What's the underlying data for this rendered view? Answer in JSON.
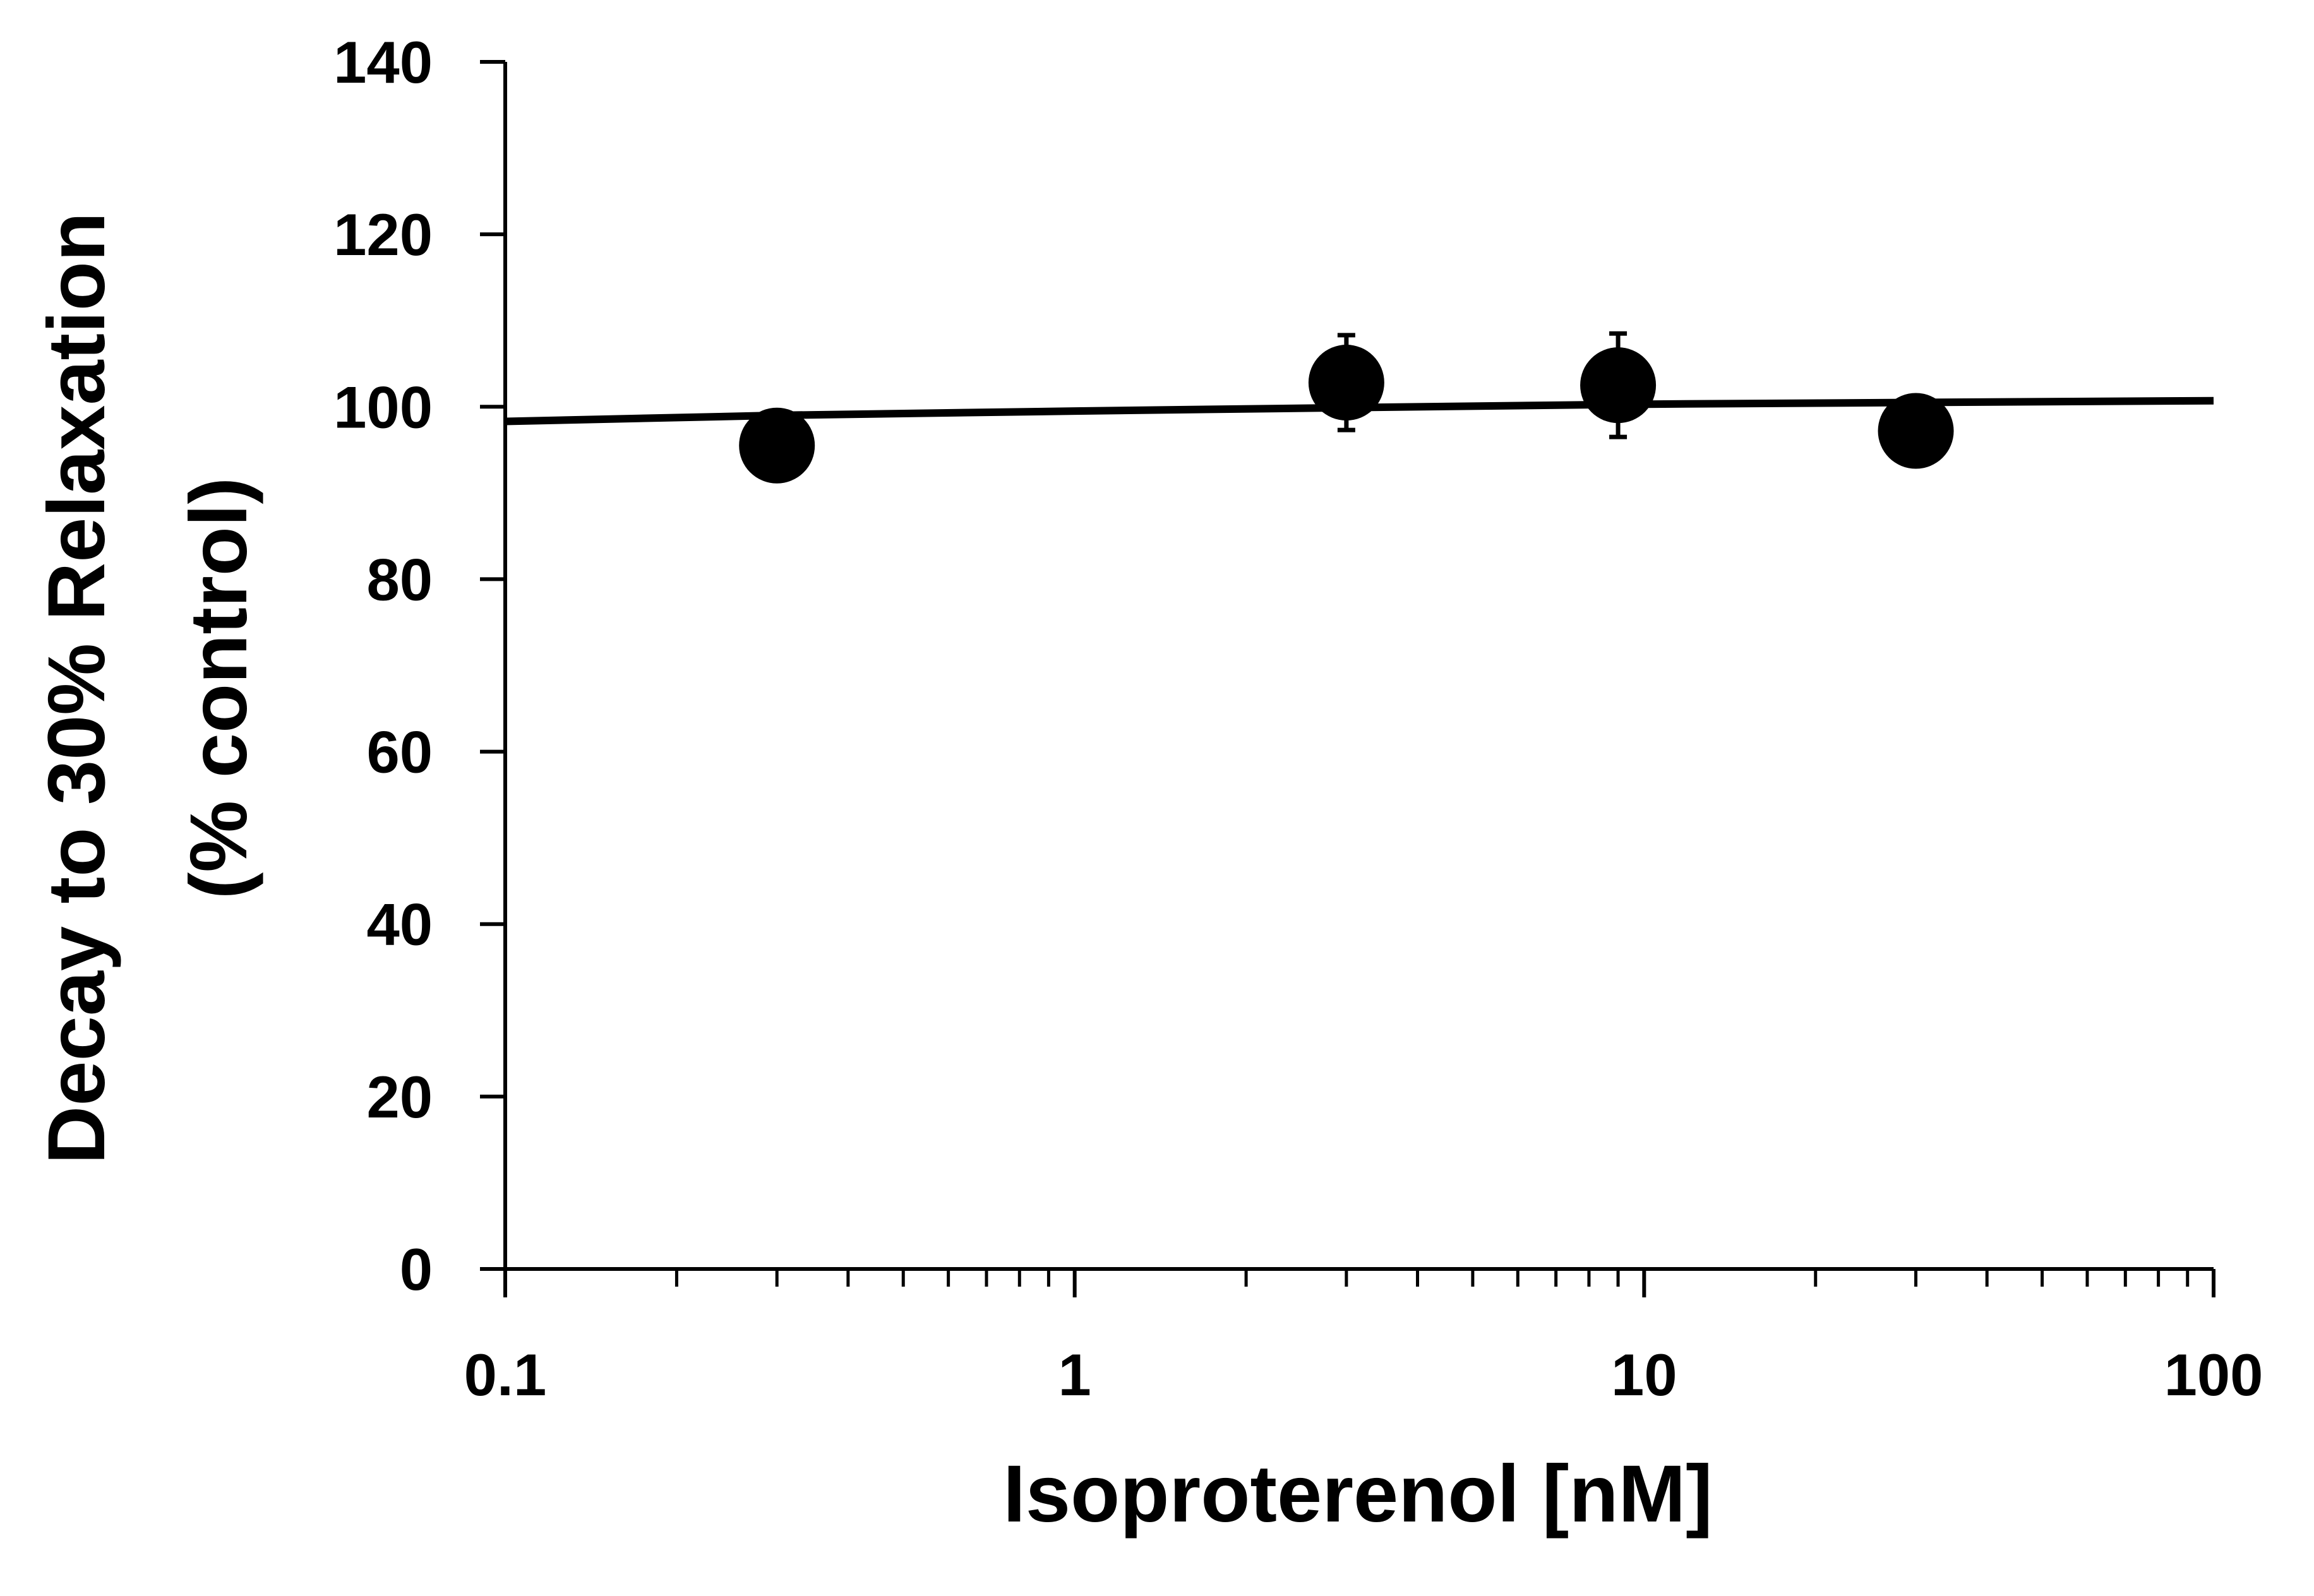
{
  "chart_data": {
    "type": "scatter",
    "xlabel": "Isoproterenol [nM]",
    "ylabel_lines": [
      "Decay to 30% Relaxation",
      "(% control)"
    ],
    "x_scale": "log",
    "xlim": [
      0.1,
      100
    ],
    "ylim": [
      0,
      140
    ],
    "x_tick_labels": [
      "0.1",
      "1",
      "10",
      "100"
    ],
    "x_ticks": [
      0.1,
      1,
      10,
      100
    ],
    "y_ticks": [
      0,
      20,
      40,
      60,
      80,
      100,
      120,
      140
    ],
    "y_tick_labels": [
      "0",
      "20",
      "40",
      "60",
      "80",
      "100",
      "120",
      "140"
    ],
    "grid": false,
    "legend": "none",
    "points": [
      {
        "x": 0.3,
        "y": 95.5,
        "err": 0
      },
      {
        "x": 3,
        "y": 102.8,
        "err": 5.5
      },
      {
        "x": 9,
        "y": 102.5,
        "err": 6.0
      },
      {
        "x": 30,
        "y": 97.2,
        "err": 0
      }
    ],
    "fit_line": {
      "x": [
        0.1,
        0.3,
        1,
        3,
        10,
        30,
        100
      ],
      "y": [
        98.3,
        99.0,
        99.5,
        99.9,
        100.3,
        100.5,
        100.7
      ]
    },
    "colors": {
      "marker": "#000000",
      "line": "#000000",
      "axis": "#000000"
    }
  }
}
